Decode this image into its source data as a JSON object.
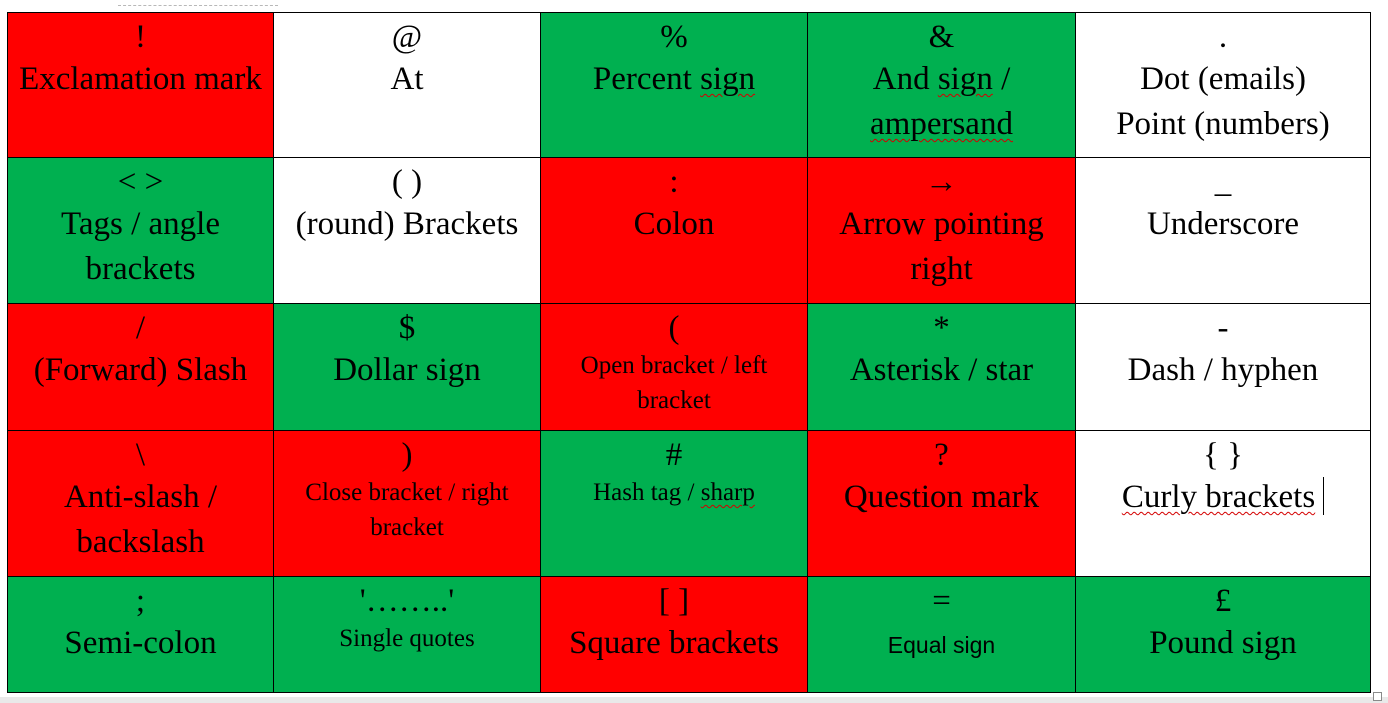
{
  "table": {
    "colors": {
      "red": "#ff0000",
      "green": "#00b050",
      "white": "#ffffff"
    },
    "rows": [
      {
        "cells": [
          {
            "symbol": "!",
            "label": "Exclamation mark",
            "color": "red"
          },
          {
            "symbol": "@",
            "label": "At",
            "color": "white"
          },
          {
            "symbol": "%",
            "label_pre": "Percent ",
            "label_squiggle": "sign",
            "color": "green"
          },
          {
            "symbol": "&",
            "label_line1_pre": "And ",
            "label_line1_squiggle": "sign",
            "label_line1_post": " /",
            "label_line2": "ampersand",
            "color": "green"
          },
          {
            "symbol": ".",
            "label_line1": "Dot (emails)",
            "label_line2": "Point (numbers)",
            "color": "white"
          }
        ]
      },
      {
        "cells": [
          {
            "symbol": "< >",
            "label": "Tags / angle brackets",
            "color": "green"
          },
          {
            "symbol": "( )",
            "label": "(round) Brackets",
            "color": "white"
          },
          {
            "symbol": ":",
            "label": "Colon",
            "color": "red"
          },
          {
            "symbol": "→",
            "label": "Arrow pointing right",
            "color": "red"
          },
          {
            "symbol": "_",
            "label": "Underscore",
            "color": "white"
          }
        ]
      },
      {
        "cells": [
          {
            "symbol": "/",
            "label": "(Forward) Slash",
            "color": "red"
          },
          {
            "symbol": "$",
            "label": "Dollar sign",
            "color": "green"
          },
          {
            "symbol": "(",
            "label": "Open bracket / left bracket",
            "color": "red"
          },
          {
            "symbol": "*",
            "label": "Asterisk / star",
            "color": "green"
          },
          {
            "symbol": "-",
            "label": "Dash / hyphen",
            "color": "white"
          }
        ]
      },
      {
        "cells": [
          {
            "symbol": "\\",
            "label": "Anti-slash / backslash",
            "color": "red"
          },
          {
            "symbol": ")",
            "label": "Close bracket / right bracket",
            "color": "red"
          },
          {
            "symbol": "#",
            "label_pre": "Hash tag / ",
            "label_squiggle": "sharp",
            "color": "green"
          },
          {
            "symbol": "?",
            "label": "Question mark",
            "color": "red"
          },
          {
            "symbol": "{ }",
            "label_squiggle": "Curly brackets",
            "color": "white"
          }
        ]
      },
      {
        "cells": [
          {
            "symbol": ";",
            "label": "Semi-colon",
            "color": "green"
          },
          {
            "symbol": "'……..'",
            "label": "Single quotes",
            "color": "green"
          },
          {
            "symbol": "[ ]",
            "label": "Square brackets",
            "color": "red"
          },
          {
            "symbol": "=",
            "label": "Equal sign",
            "color": "green"
          },
          {
            "symbol": "£",
            "label": "Pound sign",
            "color": "green"
          }
        ]
      }
    ]
  }
}
